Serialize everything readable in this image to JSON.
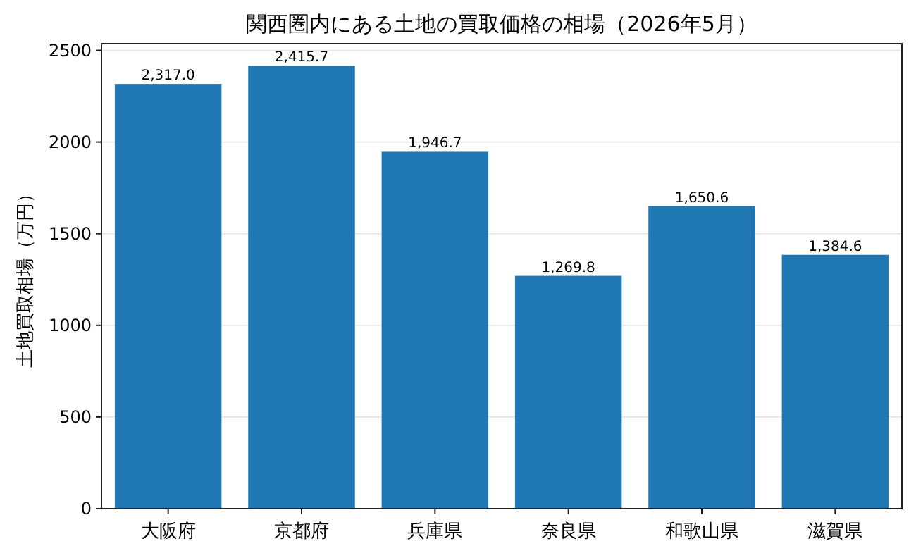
{
  "chart_data": {
    "type": "bar",
    "title": "関西圏内にある土地の買取価格の相場（2026年5月）",
    "ylabel": "土地買取相場（万円）",
    "categories": [
      "大阪府",
      "京都府",
      "兵庫県",
      "奈良県",
      "和歌山県",
      "滋賀県"
    ],
    "values": [
      2317.0,
      2415.7,
      1946.7,
      1269.8,
      1650.6,
      1384.6
    ],
    "value_labels": [
      "2,317.0",
      "2,415.7",
      "1,946.7",
      "1,269.8",
      "1,650.6",
      "1,384.6"
    ],
    "color": "#1f77b4",
    "ylim": [
      0,
      2536.5
    ],
    "yticks": [
      0,
      500,
      1000,
      1500,
      2000,
      2500
    ],
    "grid": "y"
  }
}
